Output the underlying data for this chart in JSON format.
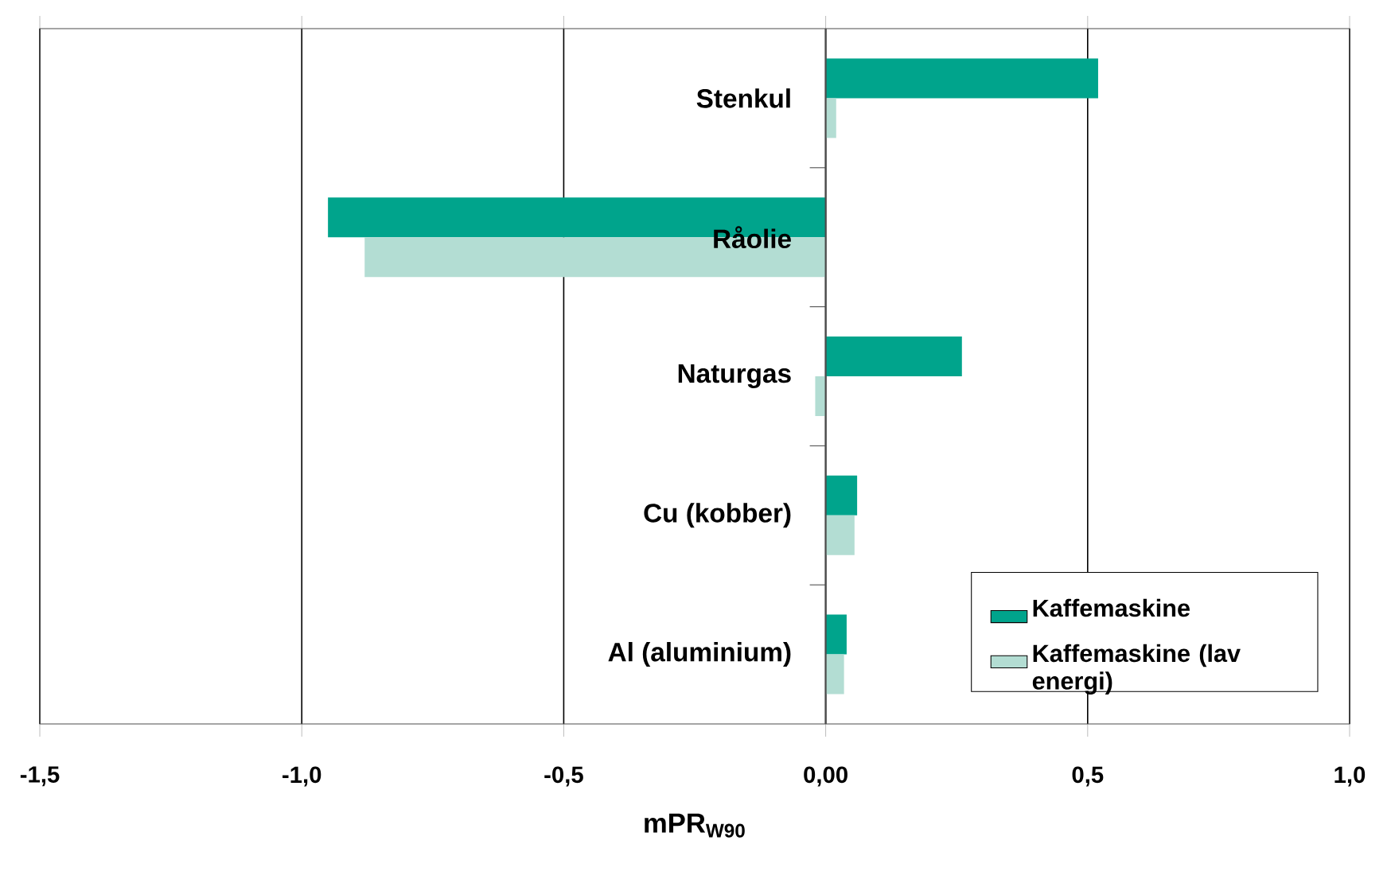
{
  "chart_data": {
    "type": "bar",
    "orientation": "horizontal",
    "xlabel": "mPR$_{W90}$",
    "categories": [
      "Stenkul",
      "Råolie",
      "Naturgas",
      "Cu (kobber)",
      "Al (aluminium)"
    ],
    "series": [
      {
        "name": "Kaffemaskine",
        "color": "#00a48c",
        "values": [
          0.52,
          -0.95,
          0.26,
          0.06,
          0.04
        ]
      },
      {
        "name": "Kaffemaskine (lav energi)",
        "color": "#b3ddd3",
        "values": [
          0.02,
          -0.88,
          -0.02,
          0.055,
          0.035
        ]
      }
    ],
    "xlim": [
      -1.5,
      1.0
    ],
    "xticks": [
      {
        "value": -1.5,
        "label": "-1,5"
      },
      {
        "value": -1.0,
        "label": "-1,0"
      },
      {
        "value": -0.5,
        "label": "-0,5"
      },
      {
        "value": 0,
        "label": "0,00"
      },
      {
        "value": 0.5,
        "label": "0,5"
      },
      {
        "value": 1.0,
        "label": "1,0"
      }
    ],
    "grid": "x",
    "legend": "bottom right"
  }
}
